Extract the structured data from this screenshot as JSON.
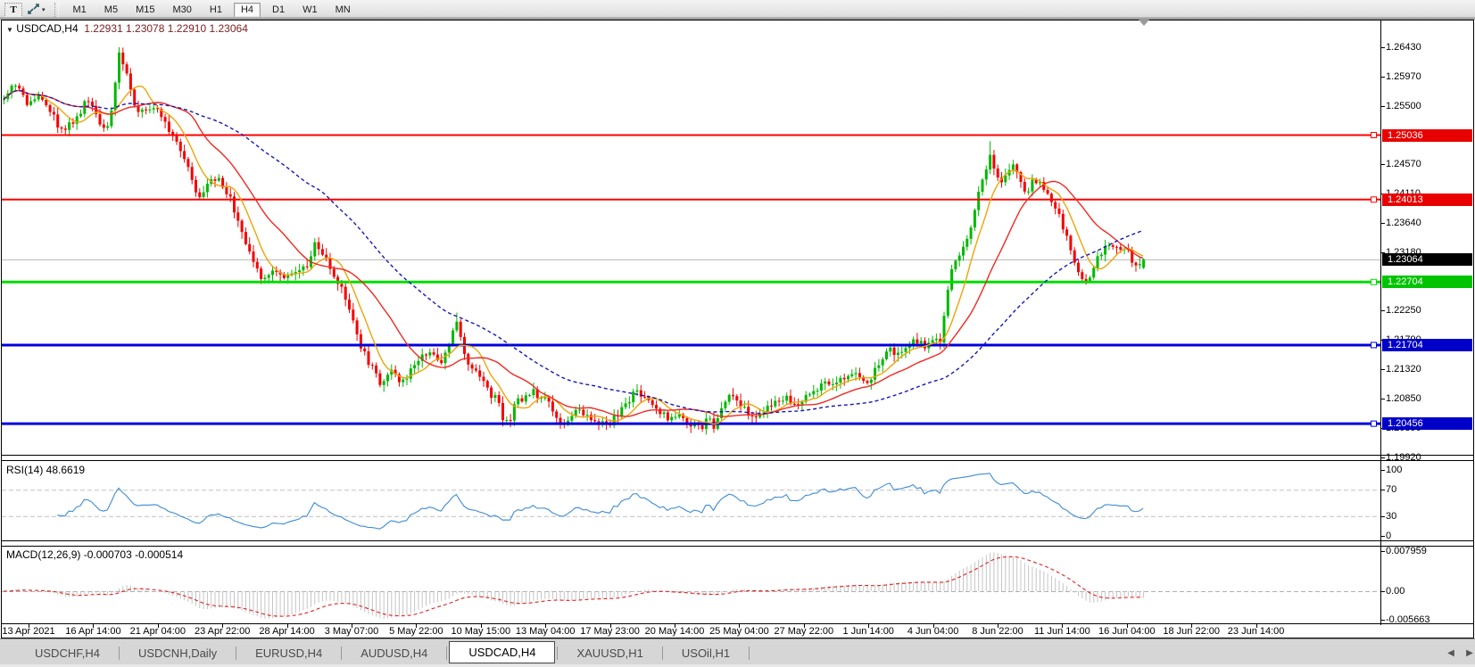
{
  "toolbar": {
    "pointer_tool_label": "T",
    "cursor_tool_icon": "crosshair-arrows",
    "timeframes": [
      "M1",
      "M5",
      "M15",
      "M30",
      "H1",
      "H4",
      "D1",
      "W1",
      "MN"
    ],
    "active_timeframe": "H4"
  },
  "window_title": {
    "symbol": "USDCAD,H4",
    "open": "1.22931",
    "high": "1.23078",
    "low": "1.22910",
    "close": "1.23064"
  },
  "panels": {
    "rsi": {
      "label": "RSI(14) 48.6619",
      "ticks": [
        {
          "text": "100",
          "value": 100
        },
        {
          "text": "70",
          "value": 70
        },
        {
          "text": "30",
          "value": 30
        },
        {
          "text": "0",
          "value": 0
        }
      ],
      "guide_levels": [
        70,
        30
      ]
    },
    "macd": {
      "label": "MACD(12,26,9) -0.000703 -0.000514",
      "ticks": [
        {
          "text": "0.007959",
          "value": 0.007959
        },
        {
          "text": "0.00",
          "value": 0
        },
        {
          "text": "-0.005663",
          "value": -0.005663
        }
      ]
    }
  },
  "tabs": {
    "items": [
      "USDCHF,H4",
      "USDCNH,Daily",
      "EURUSD,H4",
      "AUDUSD,H4",
      "USDCAD,H4",
      "XAUUSD,H1",
      "USOil,H1"
    ],
    "active": "USDCAD,H4"
  },
  "colors": {
    "bull": "#00b800",
    "bear": "#f40000",
    "bid_line": "#b6b6b6",
    "ma_fast": "#efa30a",
    "ma_mid": "#ee2a22",
    "ma_slow": "#1518b4",
    "rsi_line": "#3d8bd4",
    "macd_hist": "#c4c4c4",
    "macd_signal": "#e02020",
    "guide_dash": "#c0c0c0",
    "level_red": "#ff0000",
    "level_green": "#00dc00",
    "level_blue": "#0000dc",
    "current_tag": "#000000"
  },
  "chart_data": {
    "type": "candlestick",
    "symbol": "USDCAD",
    "timeframe": "H4",
    "current_ohlc": {
      "open": 1.22931,
      "high": 1.23078,
      "low": 1.2291,
      "close": 1.23064
    },
    "current_price_label": "1.23064",
    "current_price": 1.23064,
    "y_axis": {
      "top": 1.2643,
      "bottom": 1.1992,
      "ticks": [
        "1.26430",
        "1.25970",
        "1.25500",
        "1.24570",
        "1.24110",
        "1.23640",
        "1.23180",
        "1.22250",
        "1.21790",
        "1.21320",
        "1.20850",
        "1.20390",
        "1.19920"
      ]
    },
    "x_labels": [
      "13 Apr 2021",
      "16 Apr 14:00",
      "21 Apr 04:00",
      "23 Apr 22:00",
      "28 Apr 14:00",
      "3 May 07:00",
      "5 May 22:00",
      "10 May 15:00",
      "13 May 04:00",
      "17 May 23:00",
      "20 May 14:00",
      "25 May 04:00",
      "27 May 22:00",
      "1 Jun 14:00",
      "4 Jun 04:00",
      "8 Jun 22:00",
      "11 Jun 14:00",
      "16 Jun 04:00",
      "18 Jun 22:00",
      "23 Jun 14:00"
    ],
    "horizontal_levels": [
      {
        "price": 1.25036,
        "label": "1.25036",
        "color": "#ff0000",
        "tag": "#e80000",
        "width": 2
      },
      {
        "price": 1.24013,
        "label": "1.24013",
        "color": "#ff0000",
        "tag": "#e80000",
        "width": 2
      },
      {
        "price": 1.22704,
        "label": "1.22704",
        "color": "#00dc00",
        "tag": "#00c400",
        "width": 3
      },
      {
        "price": 1.21704,
        "label": "1.21704",
        "color": "#0000dc",
        "tag": "#0000c8",
        "width": 3
      },
      {
        "price": 1.20456,
        "label": "1.20456",
        "color": "#0000dc",
        "tag": "#0000c8",
        "width": 3
      }
    ],
    "moving_averages": [
      {
        "name": "fast",
        "period": 8,
        "color": "#efa30a",
        "dash": []
      },
      {
        "name": "mid",
        "period": 21,
        "color": "#ee2a22",
        "dash": []
      },
      {
        "name": "slow",
        "period": 55,
        "color": "#1518b4",
        "dash": [
          4,
          3
        ]
      }
    ],
    "indicators": {
      "rsi": {
        "period": 14,
        "last_value": 48.6619
      },
      "macd": {
        "fast": 12,
        "slow": 26,
        "signal": 9,
        "last_macd": -0.000703,
        "last_signal": -0.000514,
        "scale_top": 0.007959,
        "scale_bottom": -0.005663
      }
    },
    "price_path_anchors": [
      [
        0,
        1.256
      ],
      [
        14,
        1.2588
      ],
      [
        28,
        1.2555
      ],
      [
        42,
        1.2562
      ],
      [
        56,
        1.254
      ],
      [
        70,
        1.2506
      ],
      [
        84,
        1.2532
      ],
      [
        96,
        1.2556
      ],
      [
        108,
        1.2534
      ],
      [
        118,
        1.2512
      ],
      [
        126,
        1.2555
      ],
      [
        133,
        1.2638
      ],
      [
        141,
        1.2598
      ],
      [
        150,
        1.2545
      ],
      [
        162,
        1.2548
      ],
      [
        174,
        1.2552
      ],
      [
        186,
        1.2522
      ],
      [
        198,
        1.2492
      ],
      [
        210,
        1.2448
      ],
      [
        222,
        1.2408
      ],
      [
        234,
        1.2428
      ],
      [
        244,
        1.2432
      ],
      [
        254,
        1.2412
      ],
      [
        264,
        1.2378
      ],
      [
        274,
        1.2332
      ],
      [
        284,
        1.2298
      ],
      [
        294,
        1.2272
      ],
      [
        304,
        1.2292
      ],
      [
        314,
        1.2284
      ],
      [
        324,
        1.228
      ],
      [
        334,
        1.2288
      ],
      [
        344,
        1.23
      ],
      [
        352,
        1.2332
      ],
      [
        362,
        1.2308
      ],
      [
        372,
        1.2288
      ],
      [
        382,
        1.2258
      ],
      [
        392,
        1.2225
      ],
      [
        402,
        1.2172
      ],
      [
        414,
        1.214
      ],
      [
        426,
        1.2108
      ],
      [
        438,
        1.2126
      ],
      [
        450,
        1.2114
      ],
      [
        462,
        1.2132
      ],
      [
        474,
        1.2158
      ],
      [
        486,
        1.216
      ],
      [
        496,
        1.2142
      ],
      [
        506,
        1.2192
      ],
      [
        511,
        1.2218
      ],
      [
        518,
        1.2165
      ],
      [
        526,
        1.2135
      ],
      [
        536,
        1.2124
      ],
      [
        546,
        1.2098
      ],
      [
        556,
        1.2082
      ],
      [
        564,
        1.2052
      ],
      [
        569,
        1.2042
      ],
      [
        577,
        1.2076
      ],
      [
        587,
        1.2086
      ],
      [
        597,
        1.2096
      ],
      [
        607,
        1.2088
      ],
      [
        617,
        1.2068
      ],
      [
        627,
        1.2046
      ],
      [
        637,
        1.2052
      ],
      [
        647,
        1.2066
      ],
      [
        657,
        1.2054
      ],
      [
        667,
        1.205
      ],
      [
        677,
        1.2044
      ],
      [
        687,
        1.2052
      ],
      [
        697,
        1.2068
      ],
      [
        707,
        1.2092
      ],
      [
        717,
        1.2096
      ],
      [
        727,
        1.2084
      ],
      [
        737,
        1.2064
      ],
      [
        747,
        1.2056
      ],
      [
        757,
        1.2056
      ],
      [
        767,
        1.205
      ],
      [
        777,
        1.2044
      ],
      [
        787,
        1.2038
      ],
      [
        794,
        1.2058
      ],
      [
        800,
        1.204
      ],
      [
        807,
        1.2076
      ],
      [
        817,
        1.2086
      ],
      [
        827,
        1.2076
      ],
      [
        837,
        1.2064
      ],
      [
        847,
        1.206
      ],
      [
        857,
        1.2072
      ],
      [
        867,
        1.2082
      ],
      [
        877,
        1.2086
      ],
      [
        887,
        1.208
      ],
      [
        897,
        1.2076
      ],
      [
        907,
        1.2092
      ],
      [
        917,
        1.2106
      ],
      [
        927,
        1.2112
      ],
      [
        937,
        1.2106
      ],
      [
        947,
        1.2122
      ],
      [
        957,
        1.2126
      ],
      [
        967,
        1.2112
      ],
      [
        977,
        1.2122
      ],
      [
        987,
        1.2146
      ],
      [
        997,
        1.2162
      ],
      [
        1007,
        1.2156
      ],
      [
        1017,
        1.2172
      ],
      [
        1027,
        1.2176
      ],
      [
        1037,
        1.217
      ],
      [
        1047,
        1.2172
      ],
      [
        1054,
        1.218
      ],
      [
        1060,
        1.2245
      ],
      [
        1067,
        1.2292
      ],
      [
        1074,
        1.2312
      ],
      [
        1081,
        1.2332
      ],
      [
        1088,
        1.2362
      ],
      [
        1095,
        1.2402
      ],
      [
        1102,
        1.2448
      ],
      [
        1109,
        1.2468
      ],
      [
        1115,
        1.2442
      ],
      [
        1123,
        1.2432
      ],
      [
        1131,
        1.2456
      ],
      [
        1139,
        1.2446
      ],
      [
        1147,
        1.2412
      ],
      [
        1155,
        1.2426
      ],
      [
        1163,
        1.2432
      ],
      [
        1171,
        1.2412
      ],
      [
        1179,
        1.24
      ],
      [
        1187,
        1.2372
      ],
      [
        1195,
        1.2342
      ],
      [
        1203,
        1.2304
      ],
      [
        1211,
        1.2282
      ],
      [
        1219,
        1.2266
      ],
      [
        1227,
        1.2302
      ],
      [
        1235,
        1.2322
      ],
      [
        1243,
        1.233
      ],
      [
        1251,
        1.2326
      ],
      [
        1259,
        1.233
      ],
      [
        1267,
        1.2308
      ],
      [
        1273,
        1.2288
      ],
      [
        1282,
        1.2306
      ]
    ]
  }
}
